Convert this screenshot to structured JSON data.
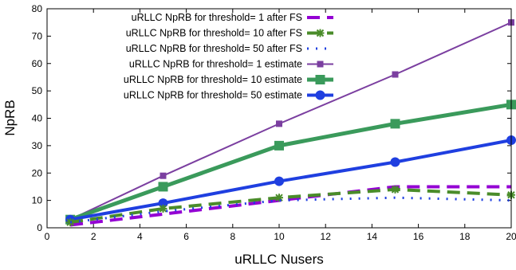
{
  "chart_data": {
    "type": "line",
    "xlabel": "uRLLC Nusers",
    "ylabel": "NpRB",
    "xlim": [
      0,
      20
    ],
    "ylim": [
      0,
      80
    ],
    "xticks": [
      0,
      2,
      4,
      6,
      8,
      10,
      12,
      14,
      16,
      18,
      20
    ],
    "yticks": [
      0,
      10,
      20,
      30,
      40,
      50,
      60,
      70,
      80
    ],
    "grid": false,
    "legend": "top-right",
    "series": [
      {
        "name": "uRLLC NpRB for threshold= 1 after FS",
        "color": "#9400d3",
        "style": "dashed-purple",
        "x": [
          1,
          5,
          10,
          15,
          20
        ],
        "y": [
          1,
          5,
          10,
          15,
          15
        ]
      },
      {
        "name": "uRLLC NpRB for threshold= 10 after FS",
        "color": "#4a8c2a",
        "style": "dashed-green-star",
        "x": [
          1,
          5,
          10,
          15,
          20
        ],
        "y": [
          2,
          7,
          11,
          14,
          12
        ]
      },
      {
        "name": "uRLLC NpRB for threshold= 50 after FS",
        "color": "#1f3fe0",
        "style": "dotted-blue",
        "x": [
          1,
          5,
          10,
          15,
          20
        ],
        "y": [
          2,
          6,
          10,
          11,
          10
        ]
      },
      {
        "name": "uRLLC NpRB for threshold= 1 estimate",
        "color": "#7b3fa0",
        "style": "solid-thin-square",
        "x": [
          1,
          5,
          10,
          15,
          20
        ],
        "y": [
          3,
          19,
          38,
          56,
          75
        ]
      },
      {
        "name": "uRLLC NpRB for threshold= 10 estimate",
        "color": "#3a9a5b",
        "style": "solid-thick-square",
        "x": [
          1,
          5,
          10,
          15,
          20
        ],
        "y": [
          3,
          15,
          30,
          38,
          45
        ]
      },
      {
        "name": "uRLLC NpRB for threshold= 50 estimate",
        "color": "#1f3fe0",
        "style": "solid-thick-circle",
        "x": [
          1,
          5,
          10,
          15,
          20
        ],
        "y": [
          3,
          9,
          17,
          24,
          32
        ]
      }
    ]
  }
}
